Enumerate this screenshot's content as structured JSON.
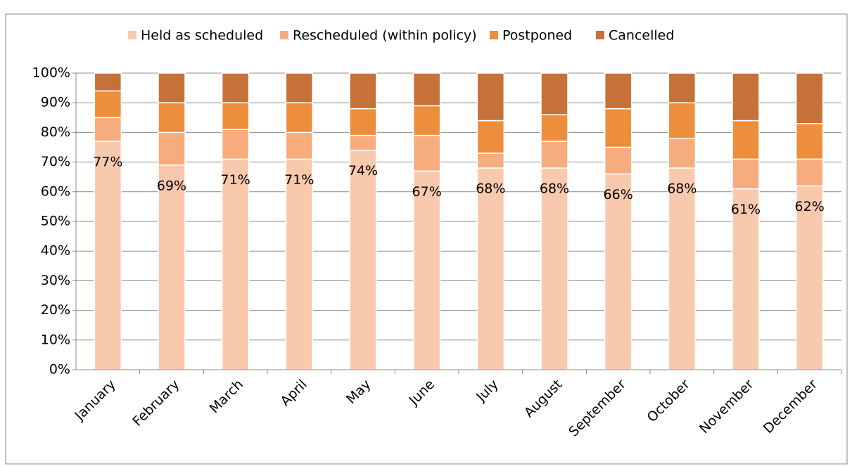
{
  "chart_data": {
    "type": "stacked_bar",
    "categories": [
      "January",
      "February",
      "March",
      "April",
      "May",
      "June",
      "July",
      "August",
      "September",
      "October",
      "November",
      "December"
    ],
    "series": [
      {
        "name": "Held as scheduled",
        "color": "#f9c9ae",
        "values": [
          77,
          69,
          71,
          71,
          74,
          67,
          68,
          68,
          66,
          68,
          61,
          62
        ],
        "value_labels": [
          "77%",
          "69%",
          "71%",
          "71%",
          "74%",
          "67%",
          "68%",
          "68%",
          "66%",
          "68%",
          "61%",
          "62%"
        ]
      },
      {
        "name": "Rescheduled (within policy)",
        "color": "#f6ac7c",
        "values": [
          8,
          11,
          10,
          9,
          5,
          12,
          5,
          9,
          9,
          10,
          10,
          9
        ]
      },
      {
        "name": "Postponed",
        "color": "#ed8e3d",
        "values": [
          9,
          10,
          9,
          10,
          9,
          10,
          11,
          9,
          13,
          12,
          13,
          12
        ]
      },
      {
        "name": "Cancelled",
        "color": "#c57138",
        "values": [
          6,
          10,
          10,
          10,
          12,
          11,
          16,
          14,
          12,
          10,
          16,
          17
        ]
      }
    ],
    "ylim": [
      0,
      100
    ],
    "yticks": [
      {
        "value": 0,
        "label": "0%"
      },
      {
        "value": 10,
        "label": "10%"
      },
      {
        "value": 20,
        "label": "20%"
      },
      {
        "value": 30,
        "label": "30%"
      },
      {
        "value": 40,
        "label": "40%"
      },
      {
        "value": 50,
        "label": "50%"
      },
      {
        "value": 60,
        "label": "60%"
      },
      {
        "value": 70,
        "label": "70%"
      },
      {
        "value": 80,
        "label": "80%"
      },
      {
        "value": 90,
        "label": "90%"
      },
      {
        "value": 100,
        "label": "100%"
      }
    ],
    "grid": true,
    "legend": "top"
  }
}
